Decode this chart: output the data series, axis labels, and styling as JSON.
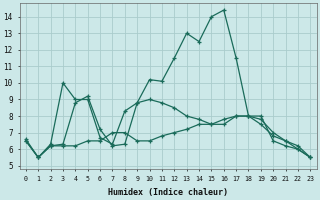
{
  "xlabel": "Humidex (Indice chaleur)",
  "xlim": [
    -0.5,
    23.5
  ],
  "ylim": [
    4.8,
    14.8
  ],
  "yticks": [
    5,
    6,
    7,
    8,
    9,
    10,
    11,
    12,
    13,
    14
  ],
  "xticks": [
    0,
    1,
    2,
    3,
    4,
    5,
    6,
    7,
    8,
    9,
    10,
    11,
    12,
    13,
    14,
    15,
    16,
    17,
    18,
    19,
    20,
    21,
    22,
    23
  ],
  "line_color": "#1a6b5a",
  "bg_color": "#cce8e8",
  "grid_color": "#aacccc",
  "lines": [
    {
      "x": [
        0,
        1,
        2,
        3,
        4,
        5,
        6,
        7,
        8,
        9,
        10,
        11,
        12,
        13,
        14,
        15,
        16,
        17,
        18,
        19,
        20,
        21,
        22,
        23
      ],
      "y": [
        6.6,
        5.5,
        6.3,
        10.0,
        9.0,
        9.0,
        6.7,
        6.3,
        8.3,
        8.8,
        10.2,
        10.1,
        11.5,
        13.0,
        12.5,
        14.0,
        14.4,
        11.5,
        8.0,
        8.0,
        6.5,
        6.2,
        6.0,
        5.5
      ]
    },
    {
      "x": [
        0,
        1,
        2,
        3,
        4,
        5,
        6,
        7,
        8,
        9,
        10,
        11,
        12,
        13,
        14,
        15,
        16,
        17,
        18,
        19,
        20,
        21,
        22,
        23
      ],
      "y": [
        6.5,
        5.5,
        6.2,
        6.2,
        6.2,
        6.5,
        6.5,
        7.0,
        7.0,
        6.5,
        6.5,
        6.8,
        7.0,
        7.2,
        7.5,
        7.5,
        7.8,
        8.0,
        8.0,
        7.8,
        7.0,
        6.5,
        6.2,
        5.5
      ]
    },
    {
      "x": [
        0,
        1,
        2,
        3,
        4,
        5,
        6,
        7,
        8,
        9,
        10,
        11,
        12,
        13,
        14,
        15,
        16,
        17,
        18,
        19,
        20,
        21,
        22,
        23
      ],
      "y": [
        6.5,
        5.5,
        6.2,
        6.3,
        8.8,
        9.2,
        7.2,
        6.2,
        6.3,
        8.8,
        9.0,
        8.8,
        8.5,
        8.0,
        7.8,
        7.5,
        7.5,
        8.0,
        8.0,
        7.5,
        6.8,
        6.5,
        6.0,
        5.5
      ]
    }
  ]
}
